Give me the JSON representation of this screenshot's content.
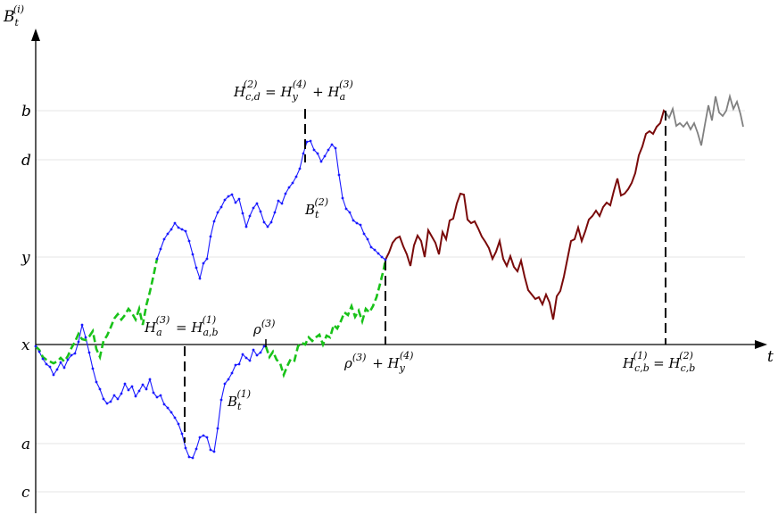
{
  "y_axis": {
    "label_main": "B",
    "label_sub": "t",
    "label_sup": "(i)"
  },
  "x_axis": {
    "label": "t"
  },
  "levels": [
    {
      "key": "b",
      "label": "b",
      "value": 5.3
    },
    {
      "key": "d",
      "label": "d",
      "value": 4.3
    },
    {
      "key": "y",
      "label": "y",
      "value": 1.8
    },
    {
      "key": "x",
      "label": "x",
      "value": 0
    },
    {
      "key": "a",
      "label": "a",
      "value": -2.0
    },
    {
      "key": "c",
      "label": "c",
      "value": -3.0
    }
  ],
  "annotations": {
    "h_cd_2": {
      "main": "H",
      "sub": "c,d",
      "sup": "(2)",
      "eq": " = ",
      "main2": "H",
      "sub2": "y",
      "sup2": "(4)",
      "plus": " + ",
      "main3": "H",
      "sub3": "a",
      "sup3": "(3)"
    },
    "h_a_3": {
      "main": "H",
      "sub": "a",
      "sup": "(3)",
      "eq": " = ",
      "main2": "H",
      "sub2": "a,b",
      "sup2": "(1)"
    },
    "rho_3": {
      "main": "ρ",
      "sup": "(3)"
    },
    "rho_plus": {
      "main": "ρ",
      "sup": "(3)",
      "plus": " + ",
      "main2": "H",
      "sub2": "y",
      "sup2": "(4)"
    },
    "h_cb": {
      "main": "H",
      "sub": "c,b",
      "sup": "(1)",
      "eq": " = ",
      "main2": "H",
      "sub2": "c,b",
      "sup2": "(2)"
    },
    "b_t_2": {
      "main": "B",
      "sub": "t",
      "sup": "(2)"
    },
    "b_t_1": {
      "main": "B",
      "sub": "t",
      "sup": "(1)"
    }
  },
  "colors": {
    "blue_path": "#1a1aff",
    "green_path": "#19c219",
    "red_path": "#7a0a0a",
    "gray_path": "#808080"
  }
}
